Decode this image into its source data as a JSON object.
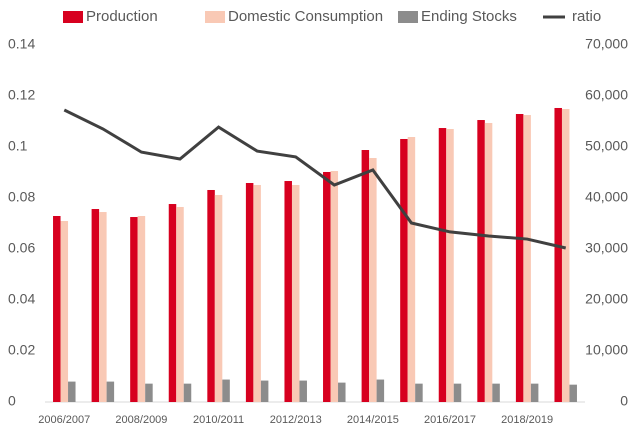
{
  "chart_data": {
    "type": "bar",
    "categories": [
      "2006/2007",
      null,
      "2008/2009",
      null,
      "2010/2011",
      null,
      "2012/2013",
      null,
      "2014/2015",
      null,
      "2016/2017",
      null,
      "2018/2019",
      null
    ],
    "series": [
      {
        "name": "Production",
        "color": "#d7001f",
        "axis": "y2",
        "values": [
          36470,
          37840,
          36270,
          38820,
          41570,
          42940,
          43330,
          45100,
          49410,
          51570,
          53720,
          55290,
          56470,
          57650
        ]
      },
      {
        "name": "Domestic Consumption",
        "color": "#f9c9b5",
        "axis": "y2",
        "values": [
          35490,
          37250,
          36470,
          38240,
          40590,
          42550,
          42550,
          45290,
          47840,
          51960,
          53530,
          54710,
          56270,
          57450
        ]
      },
      {
        "name": "Ending Stocks",
        "color": "#8c8c8c",
        "axis": "y2",
        "values": [
          4000,
          4000,
          3600,
          3600,
          4400,
          4200,
          4200,
          3800,
          4400,
          3600,
          3600,
          3600,
          3600,
          3400
        ]
      },
      {
        "name": "ratio",
        "color": "#404040",
        "type": "line",
        "values": [
          0.1145,
          0.1071,
          0.098,
          0.0953,
          0.1078,
          0.0984,
          0.0961,
          0.0851,
          0.091,
          0.0702,
          0.0667,
          0.0651,
          0.0639,
          0.0604
        ]
      }
    ],
    "ylim": [
      0,
      0.14
    ],
    "yticks": [
      0,
      0.02,
      0.04,
      0.06,
      0.08,
      0.1,
      0.12,
      0.14
    ],
    "y2lim": [
      0,
      70000
    ],
    "y2ticks": [
      0,
      {
        "value": 10000,
        "label": "10,000"
      },
      {
        "value": 20000,
        "label": "20,000"
      },
      {
        "value": 30000,
        "label": "30,000"
      },
      {
        "value": 40000,
        "label": "40,000"
      },
      {
        "value": 50000,
        "label": "50,000"
      },
      {
        "value": 60000,
        "label": "60,000"
      },
      {
        "value": 70000,
        "label": "70,000"
      }
    ],
    "grid": false,
    "legend": "top"
  }
}
